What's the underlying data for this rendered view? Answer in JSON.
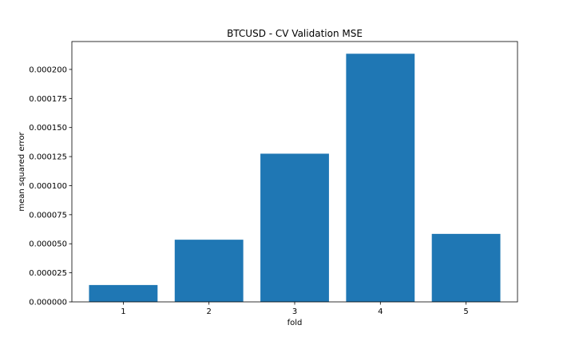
{
  "chart_data": {
    "type": "bar",
    "title": "BTCUSD - CV Validation MSE",
    "xlabel": "fold",
    "ylabel": "mean squared error",
    "categories": [
      "1",
      "2",
      "3",
      "4",
      "5"
    ],
    "values": [
      1.45e-05,
      5.35e-05,
      0.0001275,
      0.0002135,
      5.85e-05
    ],
    "ylim": [
      0,
      0.000224
    ],
    "yticks": [
      0,
      2.5e-05,
      5e-05,
      7.5e-05,
      0.0001,
      0.000125,
      0.00015,
      0.000175,
      0.0002
    ],
    "ytick_labels": [
      "0.000000",
      "0.000025",
      "0.000050",
      "0.000075",
      "0.000100",
      "0.000125",
      "0.000150",
      "0.000175",
      "0.000200"
    ],
    "bar_color": "#1f77b4",
    "grid": false,
    "legend": "none"
  }
}
